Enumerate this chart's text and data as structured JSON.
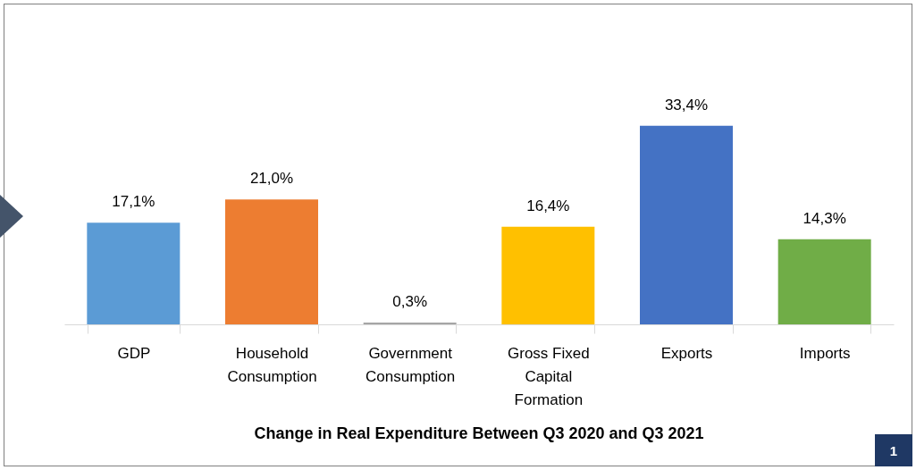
{
  "chart_data": {
    "type": "bar",
    "title": "Change in Real Expenditure Between Q3 2020 and Q3 2021",
    "categories": [
      "GDP",
      "Household Consumption",
      "Government Consumption",
      "Gross Fixed Capital Formation",
      "Exports",
      "Imports"
    ],
    "values": [
      17.1,
      21.0,
      0.3,
      16.4,
      33.4,
      14.3
    ],
    "colors": [
      "#5b9bd5",
      "#ed7d31",
      "#a5a5a5",
      "#ffc000",
      "#4472c4",
      "#70ad47"
    ],
    "value_labels": [
      "17,1%",
      "21,0%",
      "0,3%",
      "16,4%",
      "33,4%",
      "14,3%"
    ],
    "annotations": [
      "1"
    ]
  }
}
